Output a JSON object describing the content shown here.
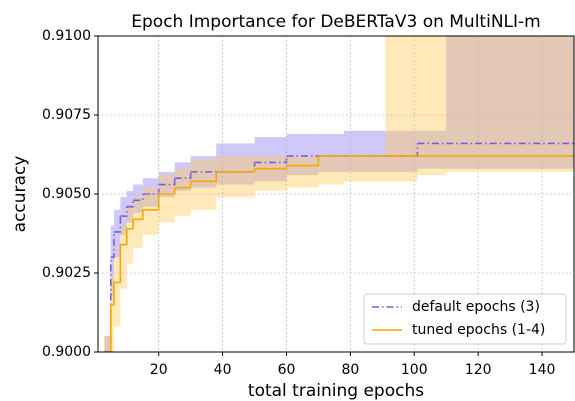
{
  "chart_data": {
    "type": "step",
    "title": "Epoch Importance for DeBERTaV3 on MultiNLI-m",
    "x_label": "total training epochs",
    "y_label": "accuracy",
    "x": [
      3,
      5,
      6,
      8,
      10,
      12,
      15,
      20,
      25,
      30,
      38,
      50,
      60,
      70,
      78,
      91,
      101,
      110,
      150
    ],
    "series": [
      {
        "name": "default epochs (3)",
        "color": "#7b5ce0",
        "band_color": "#8878f0",
        "linestyle": "dashdot",
        "values": [
          0.9,
          0.903,
          0.9038,
          0.9043,
          0.9046,
          0.9048,
          0.905,
          0.9053,
          0.9055,
          0.9057,
          0.9057,
          0.906,
          0.9062,
          0.9062,
          0.9062,
          0.9062,
          0.9066,
          0.9066,
          0.9066
        ],
        "lower": [
          0.899,
          0.9018,
          0.903,
          0.9037,
          0.9041,
          0.9044,
          0.9046,
          0.9049,
          0.9051,
          0.9052,
          0.9053,
          0.9054,
          0.9056,
          0.9057,
          0.9057,
          0.9057,
          0.9058,
          0.9058,
          0.9058
        ],
        "upper": [
          0.9005,
          0.904,
          0.9045,
          0.9049,
          0.9051,
          0.9053,
          0.9055,
          0.9057,
          0.906,
          0.9062,
          0.9066,
          0.9068,
          0.9069,
          0.9069,
          0.907,
          0.907,
          0.907,
          0.911,
          0.911
        ]
      },
      {
        "name": "tuned epochs (1-4)",
        "color": "#f5a800",
        "band_color": "#ffc850",
        "linestyle": "solid",
        "values": [
          0.9,
          0.9015,
          0.9022,
          0.9034,
          0.9039,
          0.9042,
          0.9045,
          0.905,
          0.9052,
          0.9054,
          0.9057,
          0.9058,
          0.9059,
          0.9062,
          0.9062,
          0.9062,
          0.9062,
          0.9062,
          0.9062
        ],
        "lower": [
          0.899,
          0.9,
          0.9008,
          0.902,
          0.9028,
          0.9033,
          0.9037,
          0.9041,
          0.9043,
          0.9045,
          0.9049,
          0.9051,
          0.9052,
          0.9053,
          0.9054,
          0.9054,
          0.9056,
          0.9057,
          0.9057
        ],
        "upper": [
          0.9005,
          0.9025,
          0.903,
          0.904,
          0.9046,
          0.9049,
          0.9052,
          0.9056,
          0.9058,
          0.9061,
          0.9062,
          0.9062,
          0.9062,
          0.9062,
          0.9062,
          0.911,
          0.911,
          0.911,
          0.911
        ]
      }
    ],
    "xlim": [
      1,
      150
    ],
    "ylim": [
      0.9,
      0.91
    ],
    "xticks": [
      20,
      40,
      60,
      80,
      100,
      120,
      140
    ],
    "yticks": [
      {
        "value": 0.9,
        "label": "0.9000"
      },
      {
        "value": 0.9025,
        "label": "0.9025"
      },
      {
        "value": 0.905,
        "label": "0.9050"
      },
      {
        "value": 0.9075,
        "label": "0.9075"
      },
      {
        "value": 0.91,
        "label": "0.9100"
      }
    ],
    "grid": true,
    "legend": "lower right"
  }
}
